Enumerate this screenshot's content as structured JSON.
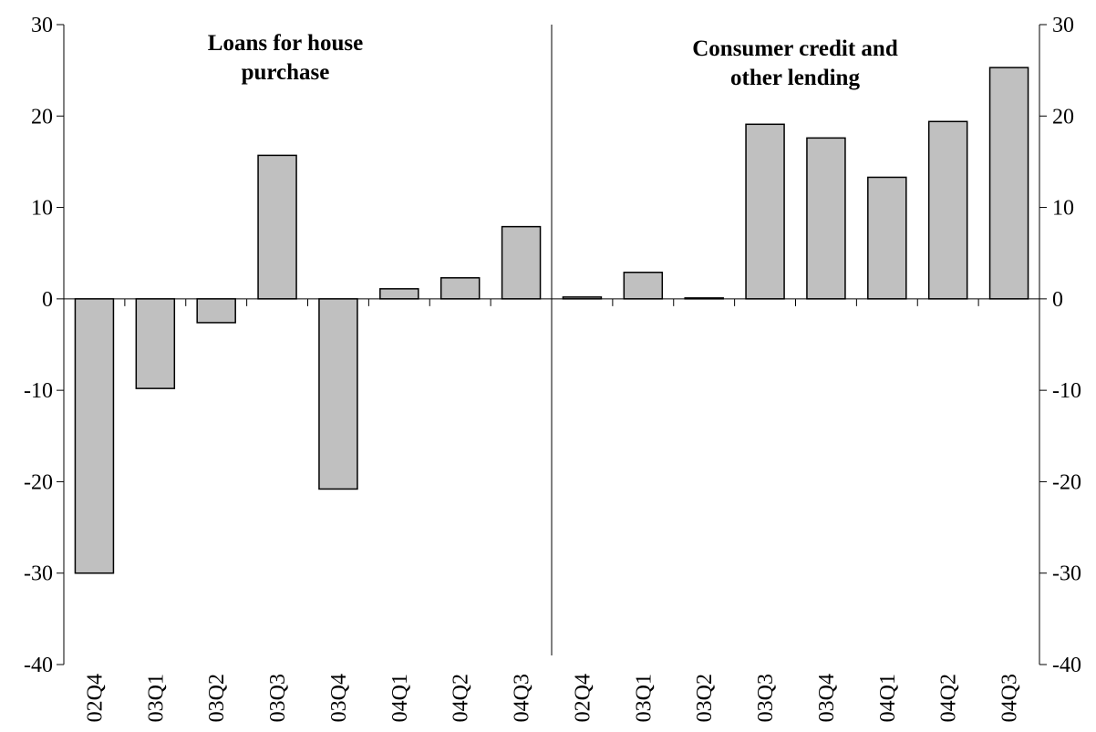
{
  "chart_data": {
    "type": "bar",
    "annotations": [
      "Loans for house purchase",
      "Consumer credit and other lending"
    ],
    "categories": [
      "02Q4",
      "03Q1",
      "03Q2",
      "03Q3",
      "03Q4",
      "04Q1",
      "04Q2",
      "04Q3",
      "02Q4",
      "03Q1",
      "03Q2",
      "03Q3",
      "03Q4",
      "04Q1",
      "04Q2",
      "04Q3"
    ],
    "values": [
      -30,
      -9.8,
      -2.6,
      15.7,
      -20.8,
      1.1,
      2.3,
      7.9,
      0.2,
      2.9,
      0.1,
      19.1,
      17.6,
      13.3,
      19.4,
      25.3
    ],
    "color": "#c0c0c0",
    "ylim": [
      -40,
      30
    ],
    "yticks": [
      -40,
      -30,
      -20,
      -10,
      0,
      10,
      20,
      30
    ],
    "y2lim": [
      -40,
      30
    ],
    "y2ticks": [
      -40,
      -30,
      -20,
      -10,
      0,
      10,
      20,
      30
    ],
    "grid": false
  }
}
